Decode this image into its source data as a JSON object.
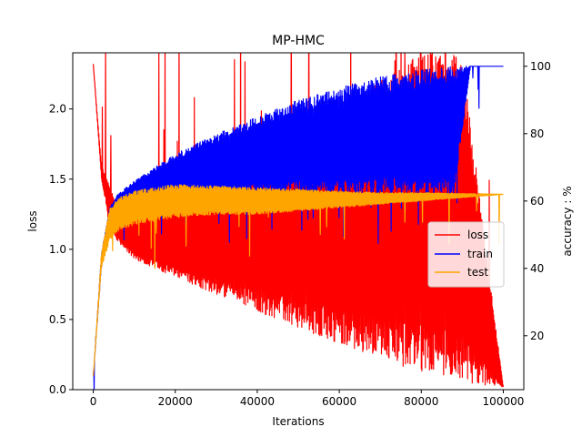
{
  "chart_data": {
    "type": "line",
    "title": "MP-HMC",
    "xlabel": "Iterations",
    "ylabel": "loss",
    "y2label": "accuracy : %",
    "xlim": [
      -5000,
      105000
    ],
    "ylim": [
      0,
      2.4
    ],
    "y2lim": [
      4,
      104
    ],
    "xticks": [
      0,
      20000,
      40000,
      60000,
      80000,
      100000
    ],
    "xtick_labels": [
      "0",
      "20000",
      "40000",
      "60000",
      "80000",
      "100000"
    ],
    "yticks": [
      0.0,
      0.5,
      1.0,
      1.5,
      2.0
    ],
    "ytick_labels": [
      "0.0",
      "0.5",
      "1.0",
      "1.5",
      "2.0"
    ],
    "y2ticks": [
      20,
      40,
      60,
      80,
      100
    ],
    "y2tick_labels": [
      "20",
      "40",
      "60",
      "80",
      "100"
    ],
    "grid": false,
    "legend_position": "center-right",
    "series": [
      {
        "name": "loss",
        "axis": "left",
        "color": "#ff0000",
        "lower": {
          "x": [
            0,
            2000,
            4000,
            6000,
            10000,
            20000,
            30000,
            40000,
            50000,
            60000,
            70000,
            80000,
            90000,
            100000
          ],
          "y": [
            2.32,
            1.5,
            1.15,
            1.05,
            0.93,
            0.8,
            0.68,
            0.56,
            0.44,
            0.33,
            0.22,
            0.12,
            0.05,
            0.02
          ]
        },
        "upper": {
          "x": [
            0,
            2000,
            4000,
            6000,
            10000,
            20000,
            30000,
            40000,
            50000,
            60000,
            70000,
            80000,
            90000,
            100000
          ],
          "y": [
            2.32,
            1.6,
            1.45,
            1.3,
            1.25,
            1.3,
            1.45,
            1.6,
            1.8,
            2.0,
            2.2,
            2.4,
            2.4,
            0.02
          ]
        }
      },
      {
        "name": "train",
        "axis": "right",
        "color": "#0000ff",
        "lower": {
          "x": [
            0,
            2000,
            4000,
            6000,
            10000,
            20000,
            30000,
            40000,
            50000,
            60000,
            70000,
            80000,
            88000,
            92000,
            100000
          ],
          "y": [
            8,
            40,
            55,
            58,
            59,
            61,
            62,
            62,
            62,
            62,
            62,
            62,
            62,
            100,
            100
          ]
        },
        "upper": {
          "x": [
            0,
            2000,
            4000,
            6000,
            10000,
            20000,
            30000,
            40000,
            50000,
            60000,
            70000,
            80000,
            88000,
            92000,
            100000
          ],
          "y": [
            8,
            45,
            58,
            62,
            66,
            74,
            80,
            85,
            90,
            94,
            97,
            99,
            100,
            100,
            100
          ]
        }
      },
      {
        "name": "test",
        "axis": "right",
        "color": "#ffa500",
        "lower": {
          "x": [
            0,
            2000,
            4000,
            6000,
            10000,
            20000,
            30000,
            40000,
            50000,
            60000,
            70000,
            80000,
            100000
          ],
          "y": [
            8,
            40,
            48,
            51,
            53,
            55,
            56,
            56,
            57,
            58,
            59,
            60,
            62
          ]
        },
        "upper": {
          "x": [
            0,
            2000,
            4000,
            6000,
            10000,
            20000,
            30000,
            40000,
            50000,
            60000,
            70000,
            80000,
            100000
          ],
          "y": [
            8,
            45,
            58,
            61,
            63,
            65,
            64.5,
            64,
            63.5,
            63,
            62.5,
            62.5,
            62
          ]
        }
      }
    ]
  }
}
